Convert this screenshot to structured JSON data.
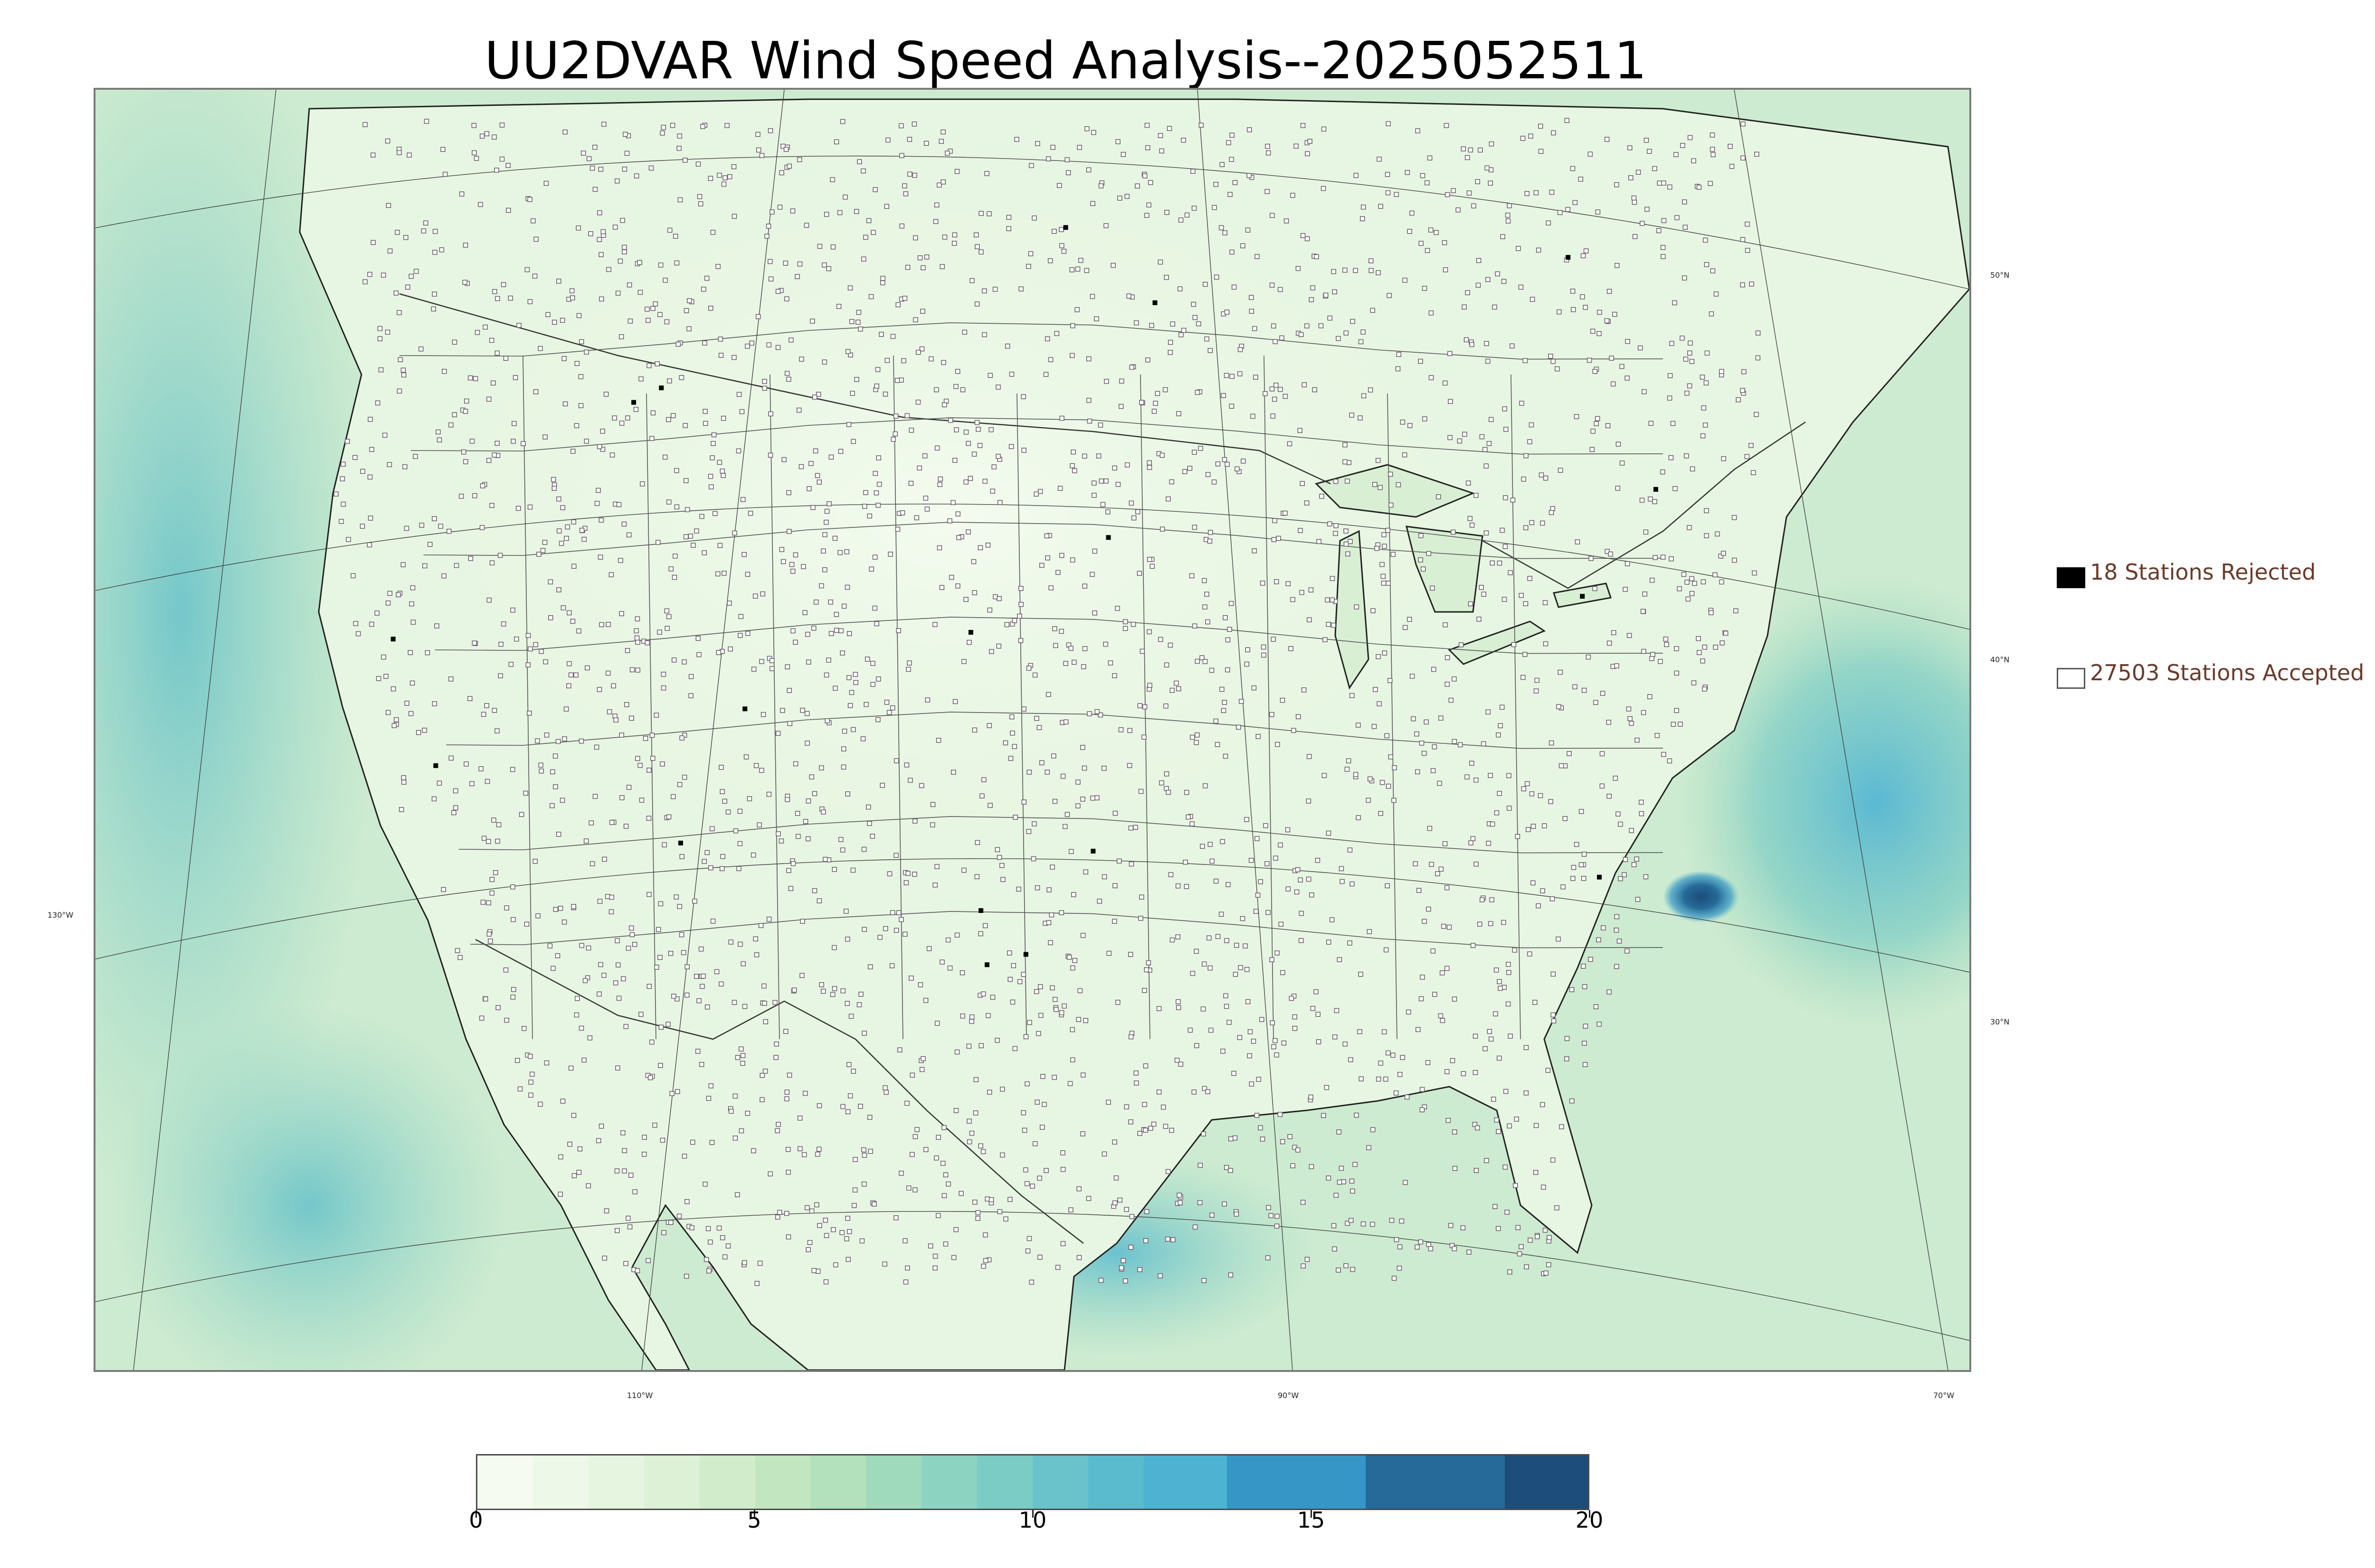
{
  "title": "UU2DVAR Wind Speed Analysis--2025052511",
  "map": {
    "projection": "lambert-conformal",
    "basemap_color": "#e4f4df",
    "features": [
      "coastlines",
      "country-borders",
      "state-borders",
      "lakes",
      "meridians",
      "parallels"
    ],
    "latitude_labels": [
      "50°N",
      "40°N",
      "30°N"
    ],
    "longitude_labels": [
      "130°W",
      "110°W",
      "90°W",
      "70°W"
    ]
  },
  "legend": {
    "rejected": {
      "label": "18 Stations Rejected",
      "count": 18,
      "marker_color": "#000000"
    },
    "accepted": {
      "label": "27503 Stations Accepted",
      "count": 27503,
      "marker_color": "#ffffff"
    },
    "text_color": "#6b3a2a"
  },
  "colorbar": {
    "min": 0,
    "max": 20,
    "tick_labels": [
      "0",
      "5",
      "10",
      "15",
      "20"
    ],
    "bins": [
      {
        "from": 0,
        "to": 1,
        "color": "#f5fbf0"
      },
      {
        "from": 1,
        "to": 2,
        "color": "#eef8e8"
      },
      {
        "from": 2,
        "to": 3,
        "color": "#e6f5e0"
      },
      {
        "from": 3,
        "to": 4,
        "color": "#dcf1d6"
      },
      {
        "from": 4,
        "to": 5,
        "color": "#d0ecca"
      },
      {
        "from": 5,
        "to": 6,
        "color": "#c2e7c0"
      },
      {
        "from": 6,
        "to": 7,
        "color": "#b2e1bc"
      },
      {
        "from": 7,
        "to": 8,
        "color": "#a0dabd"
      },
      {
        "from": 8,
        "to": 9,
        "color": "#8dd3c2"
      },
      {
        "from": 9,
        "to": 10,
        "color": "#7bccc4"
      },
      {
        "from": 10,
        "to": 11,
        "color": "#6ac3ca"
      },
      {
        "from": 11,
        "to": 12,
        "color": "#5abace"
      },
      {
        "from": 12,
        "to": 13.5,
        "color": "#4eb3d3"
      },
      {
        "from": 13.5,
        "to": 16,
        "color": "#3697c6"
      },
      {
        "from": 16,
        "to": 18.5,
        "color": "#256a99"
      },
      {
        "from": 18.5,
        "to": 20,
        "color": "#1d4d7a"
      }
    ]
  }
}
